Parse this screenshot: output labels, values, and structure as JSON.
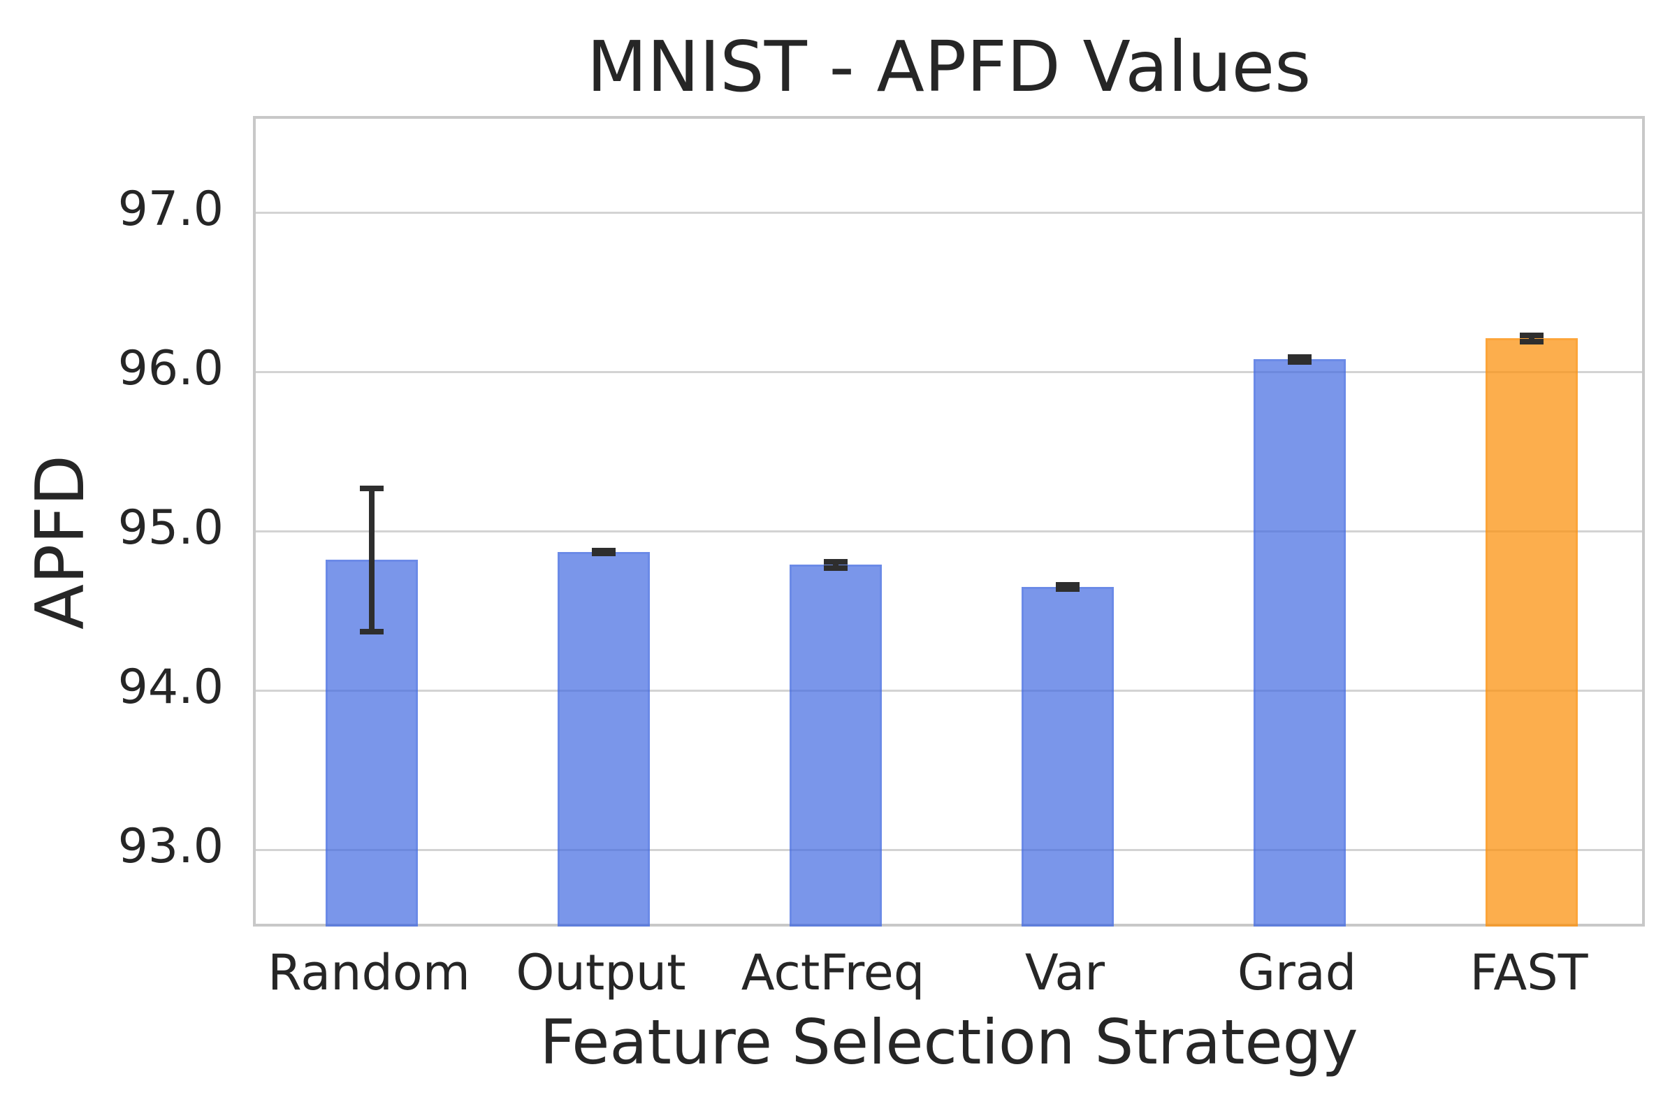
{
  "chart_data": {
    "type": "bar",
    "title": "MNIST - APFD Values",
    "xlabel": "Feature Selection Strategy",
    "ylabel": "APFD",
    "categories": [
      "Random",
      "Output",
      "ActFreq",
      "Var",
      "Grad",
      "FAST"
    ],
    "values": [
      94.82,
      94.87,
      94.79,
      94.65,
      96.08,
      96.21
    ],
    "errors": [
      0.45,
      0.01,
      0.02,
      0.015,
      0.015,
      0.02
    ],
    "highlight_category": "FAST",
    "ylim": [
      92.5,
      97.59
    ],
    "yticks": [
      93,
      94,
      95,
      96,
      97
    ],
    "ytick_labels": [
      "93.0",
      "94.0",
      "95.0",
      "96.0",
      "97.0"
    ],
    "grid": true,
    "legend_position": "none",
    "colors": {
      "default_bar": "rgba(65,105,225,0.70)",
      "default_bar_edge": "rgba(65,105,225,0.25)",
      "highlight_bar": "rgba(251,147,18,0.75)",
      "highlight_bar_edge": "rgba(251,147,18,0.30)",
      "error_bar": "#2e2e2e",
      "grid_line": "#d3d3d3",
      "spine": "#c8c8c8",
      "text": "#262626",
      "background": "#ffffff"
    }
  }
}
